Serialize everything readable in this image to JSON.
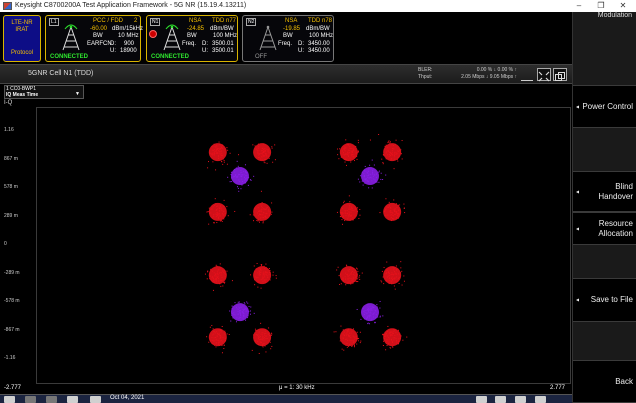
{
  "window": {
    "title": "Keysight C8700200A Test Application Framework - 5G NR (15.19.4.13211)",
    "minimize": "–",
    "restore": "❐",
    "close": "✕"
  },
  "panel": {
    "top_label": "Modulation"
  },
  "softkeys": [
    {
      "label": "Power Control",
      "arrow": "◂"
    },
    {
      "label": "Blind Handover",
      "arrow": "◂"
    },
    {
      "label": "Resource Allocation",
      "arrow": "◂"
    },
    {
      "label": "Save to File",
      "arrow": "◂"
    },
    {
      "label": "Back",
      "arrow": ""
    }
  ],
  "rat": {
    "line1": "LTE-NR",
    "line2": "IRAT",
    "protocol": "Protocol"
  },
  "cell_l1": {
    "tag": "L1",
    "head": "PCC / FDD",
    "head_num": "2",
    "power": "-60.00",
    "power_unit": "dBm/15kHz",
    "bw_label": "BW",
    "bw": "10 MHz",
    "earfcn_label": "EARFCN",
    "d_label": "D:",
    "d": "900",
    "u_label": "U:",
    "u": "18900",
    "status": "CONNECTED"
  },
  "cell_n1": {
    "tag": "N1",
    "mode": "NSA",
    "tdd": "TDD n77",
    "power": "-24.85",
    "power_unit": "dBm/BW",
    "bw_label": "BW",
    "bw": "100 MHz",
    "freq_label": "Freq.",
    "d_label": "D:",
    "d": "3500.01",
    "u_label": "U:",
    "u": "3500.01",
    "status": "CONNECTED"
  },
  "cell_n2": {
    "tag": "N2",
    "mode": "NSA",
    "tdd": "TDD n78",
    "power": "-19.85",
    "power_unit": "dBm/BW",
    "bw_label": "BW",
    "bw": "100 MHz",
    "freq_label": "Freq.",
    "d_label": "D:",
    "d": "3450.00",
    "u_label": "U:",
    "u": "3450.00",
    "status": "OFF"
  },
  "cellbar": {
    "name": "5GNR Cell N1 (TDD)",
    "bler_label": "BLER:",
    "bler_value": "0.00 % ↓ 0.00 % ↑",
    "thput_label": "Thput:",
    "thput_value": "2.05 Mbps ↓ 9.05 Mbps ↑"
  },
  "graph": {
    "selector_line1": "1 CC0-BWP1",
    "selector_line2": "IQ Meas Time",
    "title": "I-Q",
    "y_ticks": [
      "1.16",
      "867 m",
      "578 m",
      "289 m",
      "0",
      "-289 m",
      "-578 m",
      "-867 m",
      "-1.16"
    ],
    "x_left": "-2.777",
    "x_right": "2.777",
    "x_center": "μ = 1: 30 kHz"
  },
  "chart_data": {
    "type": "scatter",
    "title": "I-Q",
    "xlim": [
      -2.777,
      2.777
    ],
    "ylim": [
      -1.16,
      1.16
    ],
    "series": [
      {
        "color": "#e8121c",
        "points": [
          [
            -0.9,
            0.79
          ],
          [
            -0.44,
            0.79
          ],
          [
            0.46,
            0.79
          ],
          [
            0.91,
            0.79
          ],
          [
            -0.9,
            0.29
          ],
          [
            -0.44,
            0.29
          ],
          [
            0.46,
            0.29
          ],
          [
            0.91,
            0.29
          ],
          [
            -0.9,
            -0.24
          ],
          [
            -0.44,
            -0.24
          ],
          [
            0.46,
            -0.24
          ],
          [
            0.91,
            -0.24
          ],
          [
            -0.9,
            -0.76
          ],
          [
            -0.44,
            -0.76
          ],
          [
            0.46,
            -0.76
          ],
          [
            0.91,
            -0.76
          ]
        ]
      },
      {
        "color": "#8a1fe6",
        "points": [
          [
            -0.67,
            0.59
          ],
          [
            0.68,
            0.59
          ],
          [
            -0.67,
            -0.55
          ],
          [
            0.68,
            -0.55
          ]
        ]
      }
    ]
  },
  "taskbar": {
    "date": "Oct 04, 2021"
  }
}
